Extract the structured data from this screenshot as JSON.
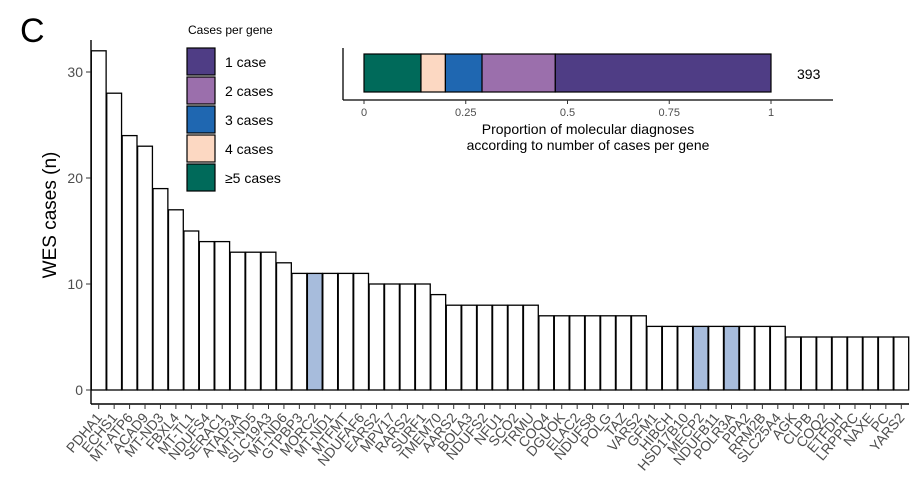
{
  "panel_label": "C",
  "chart_data": [
    {
      "type": "bar",
      "ylabel": "WES cases (n)",
      "xlabel": "",
      "ylim": [
        0,
        34
      ],
      "yticks": [
        0,
        10,
        20,
        30
      ],
      "grid": false,
      "categories": [
        "PDHA1",
        "ECHS1",
        "MT-ATP6",
        "ACAD9",
        "MT-ND3",
        "FBXL4",
        "MT-TL1",
        "NDUFS4",
        "SERAC1",
        "ATAD3A",
        "MT-ND5",
        "SLC19A3",
        "MT-ND6",
        "GTPBP3",
        "MORC2",
        "MT-ND1",
        "MTFMT",
        "NDUFAF6",
        "EARS2",
        "MPV17",
        "RARS2",
        "SURF1",
        "TMEM70",
        "AARS2",
        "BOLA3",
        "NDUFS2",
        "NFU1",
        "SCO2",
        "TRMU",
        "COQ4",
        "DGUOK",
        "ELAC2",
        "NDUFS8",
        "POLG",
        "TAZ",
        "VARS2",
        "GFM1",
        "HIBCH",
        "HSD17B10",
        "MECP2",
        "NDUFB11",
        "POLR3A",
        "PPA2",
        "RRM2B",
        "SLC25A4",
        "AGK",
        "CLPB",
        "COQ2",
        "ETFDH",
        "LRPPRC",
        "NAXE",
        "PC",
        "YARS2"
      ],
      "values": [
        32,
        28,
        24,
        23,
        19,
        17,
        15,
        14,
        14,
        13,
        13,
        13,
        12,
        11,
        11,
        11,
        11,
        11,
        10,
        10,
        10,
        10,
        9,
        8,
        8,
        8,
        8,
        8,
        8,
        7,
        7,
        7,
        7,
        7,
        7,
        7,
        6,
        6,
        6,
        6,
        6,
        6,
        6,
        6,
        6,
        5,
        5,
        5,
        5,
        5,
        5,
        5,
        5
      ],
      "highlighted": [
        "MORC2",
        "MECP2",
        "POLR3A"
      ],
      "colors": {
        "default_fill": "#ffffff",
        "highlight_fill": "#a7bcdc",
        "stroke": "#000000"
      }
    },
    {
      "type": "bar",
      "orientation": "horizontal",
      "stacked": true,
      "xlabel": "Proportion of molecular diagnoses according to number of cases per gene",
      "xlabel_lines": [
        "Proportion of molecular diagnoses",
        "according to number of cases per gene"
      ],
      "xlim": [
        0,
        1
      ],
      "xticks": [
        0,
        0.25,
        0.5,
        0.75,
        1
      ],
      "xtick_labels": [
        "0",
        "0.25",
        "0.5",
        "0.75",
        "1"
      ],
      "total_label": "393",
      "segments": [
        {
          "name": "≥5 cases",
          "value": 0.14,
          "color": "#006a5a"
        },
        {
          "name": "4 cases",
          "value": 0.06,
          "color": "#fcd8c2"
        },
        {
          "name": "3 cases",
          "value": 0.09,
          "color": "#1f67b1"
        },
        {
          "name": "2 cases",
          "value": 0.18,
          "color": "#9b6fac"
        },
        {
          "name": "1 case",
          "value": 0.53,
          "color": "#4f3d85"
        }
      ]
    }
  ],
  "legend": {
    "title": "Cases per gene",
    "position": "top-left",
    "items": [
      {
        "label": "1 case",
        "color": "#4f3d85"
      },
      {
        "label": "2 cases",
        "color": "#9b6fac"
      },
      {
        "label": "3 cases",
        "color": "#1f67b1"
      },
      {
        "label": "4 cases",
        "color": "#fcd8c2"
      },
      {
        "label": "≥5 cases",
        "color": "#006a5a"
      }
    ]
  }
}
